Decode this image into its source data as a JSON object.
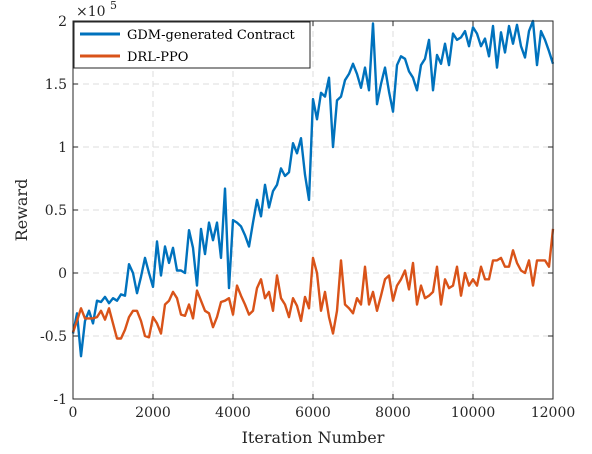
{
  "chart_data": {
    "type": "line",
    "xlabel": "Iteration Number",
    "ylabel": "Reward",
    "y_exponent_label": "×10",
    "y_exponent_power": "5",
    "xlim": [
      0,
      12000
    ],
    "ylim": [
      -100000,
      200000
    ],
    "xticks": [
      0,
      2000,
      4000,
      6000,
      8000,
      10000,
      12000
    ],
    "xtick_labels": [
      "0",
      "2000",
      "4000",
      "6000",
      "8000",
      "10000",
      "12000"
    ],
    "yticks": [
      -100000,
      -50000,
      0,
      50000,
      100000,
      150000,
      200000
    ],
    "ytick_labels": [
      "-1",
      "-0.5",
      "0",
      "0.5",
      "1",
      "1.5",
      "2"
    ],
    "grid": true,
    "legend_position": "top-left",
    "series": [
      {
        "name": "GDM-generated Contract",
        "color": "#0072BD",
        "x": [
          0,
          100,
          200,
          300,
          400,
          500,
          600,
          700,
          800,
          900,
          1000,
          1100,
          1200,
          1300,
          1400,
          1500,
          1600,
          1700,
          1800,
          1900,
          2000,
          2100,
          2200,
          2300,
          2400,
          2500,
          2600,
          2700,
          2800,
          2900,
          3000,
          3100,
          3200,
          3300,
          3400,
          3500,
          3600,
          3700,
          3800,
          3900,
          4000,
          4100,
          4200,
          4300,
          4400,
          4500,
          4600,
          4700,
          4800,
          4900,
          5000,
          5100,
          5200,
          5300,
          5400,
          5500,
          5600,
          5700,
          5800,
          5900,
          6000,
          6100,
          6200,
          6300,
          6400,
          6500,
          6600,
          6700,
          6800,
          6900,
          7000,
          7100,
          7200,
          7300,
          7400,
          7500,
          7600,
          7700,
          7800,
          7900,
          8000,
          8100,
          8200,
          8300,
          8400,
          8500,
          8600,
          8700,
          8800,
          8900,
          9000,
          9100,
          9200,
          9300,
          9400,
          9500,
          9600,
          9700,
          9800,
          9900,
          10000,
          10100,
          10200,
          10300,
          10400,
          10500,
          10600,
          10700,
          10800,
          10900,
          11000,
          11100,
          11200,
          11300,
          11400,
          11500,
          11600,
          11700,
          11800,
          11900,
          12000
        ],
        "values": [
          -48000,
          -32000,
          -66000,
          -38000,
          -30000,
          -40000,
          -22000,
          -23000,
          -19000,
          -24000,
          -20000,
          -22000,
          -17000,
          -18000,
          7000,
          0,
          -16000,
          -3000,
          12000,
          0,
          -11000,
          25000,
          -2000,
          21000,
          8000,
          20000,
          2000,
          2000,
          0,
          34000,
          20000,
          -10000,
          35000,
          15000,
          40000,
          26000,
          40000,
          12000,
          67000,
          -12000,
          42000,
          40000,
          37000,
          30000,
          21000,
          40000,
          58000,
          45000,
          70000,
          52000,
          65000,
          70000,
          83000,
          77000,
          80000,
          103000,
          95000,
          107000,
          78000,
          58000,
          138000,
          122000,
          143000,
          140000,
          155000,
          100000,
          137000,
          140000,
          153000,
          158000,
          166000,
          158000,
          147000,
          163000,
          145000,
          198000,
          134000,
          150000,
          163000,
          144000,
          128000,
          165000,
          172000,
          170000,
          160000,
          155000,
          145000,
          165000,
          170000,
          185000,
          145000,
          173000,
          166000,
          182000,
          165000,
          190000,
          185000,
          187000,
          192000,
          180000,
          195000,
          190000,
          180000,
          186000,
          172000,
          196000,
          163000,
          191000,
          175000,
          196000,
          182000,
          197000,
          180000,
          171000,
          192000,
          200000,
          165000,
          192000,
          185000,
          176000,
          166000
        ]
      },
      {
        "name": "DRL-PPO",
        "color": "#D95319",
        "x": [
          0,
          100,
          200,
          300,
          400,
          500,
          600,
          700,
          800,
          900,
          1000,
          1100,
          1200,
          1300,
          1400,
          1500,
          1600,
          1700,
          1800,
          1900,
          2000,
          2100,
          2200,
          2300,
          2400,
          2500,
          2600,
          2700,
          2800,
          2900,
          3000,
          3100,
          3200,
          3300,
          3400,
          3500,
          3600,
          3700,
          3800,
          3900,
          4000,
          4100,
          4200,
          4300,
          4400,
          4500,
          4600,
          4700,
          4800,
          4900,
          5000,
          5100,
          5200,
          5300,
          5400,
          5500,
          5600,
          5700,
          5800,
          5900,
          6000,
          6100,
          6200,
          6300,
          6400,
          6500,
          6600,
          6700,
          6800,
          6900,
          7000,
          7100,
          7200,
          7300,
          7400,
          7500,
          7600,
          7700,
          7800,
          7900,
          8000,
          8100,
          8200,
          8300,
          8400,
          8500,
          8600,
          8700,
          8800,
          8900,
          9000,
          9100,
          9200,
          9300,
          9400,
          9500,
          9600,
          9700,
          9800,
          9900,
          10000,
          10100,
          10200,
          10300,
          10400,
          10500,
          10600,
          10700,
          10800,
          10900,
          11000,
          11100,
          11200,
          11300,
          11400,
          11500,
          11600,
          11700,
          11800,
          11900,
          12000
        ],
        "values": [
          -47000,
          -38000,
          -28000,
          -36000,
          -36000,
          -36000,
          -35000,
          -30000,
          -37000,
          -28000,
          -40000,
          -52000,
          -52000,
          -45000,
          -35000,
          -30000,
          -30000,
          -38000,
          -50000,
          -51000,
          -35000,
          -40000,
          -48000,
          -25000,
          -22000,
          -15000,
          -20000,
          -33000,
          -34000,
          -25000,
          -36000,
          -14000,
          -22000,
          -30000,
          -32000,
          -43000,
          -35000,
          -23000,
          -22000,
          -20000,
          -33000,
          -10000,
          -18000,
          -25000,
          -33000,
          -30000,
          -12000,
          -5000,
          -20000,
          -15000,
          -30000,
          -2000,
          -20000,
          -25000,
          -35000,
          -20000,
          -26000,
          -38000,
          -19000,
          -28000,
          12000,
          0,
          -30000,
          -15000,
          -35000,
          -48000,
          -30000,
          10000,
          -25000,
          -28000,
          -32000,
          -20000,
          -25000,
          5000,
          -25000,
          -15000,
          -30000,
          -18000,
          -5000,
          -2000,
          -22000,
          -10000,
          -5000,
          2000,
          -13000,
          8000,
          -25000,
          -10000,
          -20000,
          -18000,
          -15000,
          5000,
          -25000,
          -5000,
          -12000,
          -10000,
          5000,
          -18000,
          0,
          -10000,
          -5000,
          -10000,
          5000,
          -5000,
          -5000,
          10000,
          10000,
          12000,
          5000,
          5000,
          18000,
          8000,
          2000,
          0,
          10000,
          -10000,
          10000,
          10000,
          10000,
          5000,
          35000
        ]
      }
    ]
  }
}
